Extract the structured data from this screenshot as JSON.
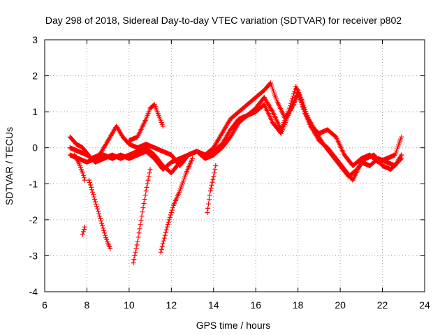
{
  "chart_data": {
    "type": "scatter",
    "title": "Day 298 of 2018, Sidereal Day-to-day VTEC variation (SDTVAR) for receiver p802",
    "xlabel": "GPS time / hours",
    "ylabel": "SDTVAR / TECUs",
    "xlim": [
      6,
      24
    ],
    "ylim": [
      -4,
      3
    ],
    "xticks": [
      "6",
      "8",
      "10",
      "12",
      "14",
      "16",
      "18",
      "20",
      "22",
      "24"
    ],
    "yticks": [
      "-4",
      "-3",
      "-2",
      "-1",
      "0",
      "1",
      "2",
      "3"
    ],
    "grid": true,
    "legend": "none",
    "marker": "+",
    "colors": {
      "series": "#ff0000",
      "axis": "#000000",
      "grid": "#a0a0a0"
    },
    "series": [
      {
        "name": "track-1",
        "x": [
          7.2,
          7.5,
          7.8,
          8.2,
          8.6,
          9.0,
          9.4,
          9.7,
          10.0,
          10.4,
          10.8,
          11.2,
          11.6,
          12.0,
          12.4,
          12.8,
          13.2,
          13.6,
          14.0,
          14.4,
          14.8,
          15.2,
          15.6,
          16.0,
          16.4,
          16.7,
          17.0,
          17.4,
          17.8,
          18.0,
          18.3,
          18.6,
          19.0,
          19.4,
          19.8,
          20.2,
          20.6,
          21.0,
          21.4,
          21.8,
          22.2,
          22.6,
          22.9
        ],
        "y": [
          0.3,
          0.1,
          0.0,
          -0.3,
          -0.2,
          0.2,
          0.6,
          0.3,
          0.1,
          0.0,
          0.1,
          0.0,
          -0.1,
          -0.2,
          -0.5,
          -0.2,
          -0.1,
          -0.2,
          0.0,
          0.4,
          0.8,
          1.0,
          1.2,
          1.4,
          1.6,
          1.8,
          1.3,
          0.8,
          1.2,
          1.6,
          1.0,
          0.6,
          0.4,
          0.5,
          0.3,
          -0.2,
          -0.5,
          -0.3,
          -0.2,
          -0.4,
          -0.3,
          -0.2,
          0.3
        ]
      },
      {
        "name": "track-2",
        "x": [
          7.2,
          7.6,
          8.0,
          8.4,
          8.8,
          9.2,
          9.6,
          10.0,
          10.4,
          10.8,
          11.2,
          11.6,
          12.0,
          12.4,
          12.8,
          13.2,
          13.6,
          14.0,
          14.4,
          14.8,
          15.2,
          15.6,
          16.0,
          16.4,
          16.8,
          17.2,
          17.6,
          17.9,
          18.2,
          18.6,
          19.0,
          19.4,
          19.8,
          20.2,
          20.6,
          21.0,
          21.4,
          21.8,
          22.2,
          22.6,
          22.9
        ],
        "y": [
          0.0,
          -0.1,
          -0.2,
          -0.4,
          -0.3,
          -0.2,
          -0.3,
          -0.2,
          -0.1,
          0.0,
          -0.2,
          -0.5,
          -0.7,
          -0.4,
          -0.2,
          -0.1,
          -0.3,
          -0.2,
          0.0,
          0.3,
          0.7,
          0.9,
          1.1,
          1.4,
          1.0,
          0.5,
          1.1,
          1.7,
          1.3,
          0.6,
          0.2,
          0.0,
          -0.3,
          -0.6,
          -0.9,
          -0.4,
          -0.5,
          -0.3,
          -0.4,
          -0.5,
          -0.2
        ]
      },
      {
        "name": "track-3",
        "x": [
          7.2,
          7.6,
          8.0,
          8.4,
          8.8,
          9.2,
          9.6,
          10.0,
          10.4,
          10.8,
          11.2,
          11.6,
          12.0,
          12.4,
          12.8,
          13.2,
          13.6,
          14.0,
          14.4,
          14.8,
          15.2,
          15.6,
          16.0,
          16.4,
          16.8,
          17.2,
          17.6,
          18.0,
          18.4,
          18.8,
          19.2,
          19.6,
          20.0,
          20.4,
          20.8,
          21.2,
          21.6,
          22.0,
          22.4,
          22.9
        ],
        "y": [
          -0.2,
          -0.3,
          -0.4,
          -0.3,
          -0.2,
          -0.3,
          -0.2,
          -0.3,
          -0.2,
          -0.1,
          -0.3,
          -0.6,
          -0.4,
          -0.3,
          -0.2,
          -0.1,
          -0.2,
          -0.1,
          0.1,
          0.5,
          0.8,
          0.9,
          1.0,
          1.2,
          0.7,
          0.4,
          1.0,
          1.5,
          0.9,
          0.5,
          0.1,
          -0.2,
          -0.5,
          -0.8,
          -0.6,
          -0.3,
          -0.2,
          -0.5,
          -0.6,
          -0.3
        ]
      },
      {
        "name": "bump-11h",
        "x": [
          10.0,
          10.4,
          10.8,
          11.0,
          11.2,
          11.4,
          11.6
        ],
        "y": [
          0.2,
          0.3,
          0.8,
          1.1,
          1.2,
          0.9,
          0.6
        ]
      },
      {
        "name": "drop-7.5h",
        "x": [
          7.4,
          7.6,
          7.8,
          7.9
        ],
        "y": [
          -0.2,
          -0.4,
          -0.7,
          -0.9
        ]
      },
      {
        "name": "fragment-8h",
        "x": [
          7.8,
          7.9
        ],
        "y": [
          -2.4,
          -2.2
        ]
      },
      {
        "name": "dip-9h",
        "x": [
          8.1,
          8.3,
          8.5,
          8.7,
          8.9,
          9.1
        ],
        "y": [
          -0.9,
          -1.3,
          -1.7,
          -2.1,
          -2.5,
          -2.8
        ]
      },
      {
        "name": "dip-10h",
        "x": [
          10.2,
          10.4,
          10.6,
          10.8,
          11.0
        ],
        "y": [
          -3.2,
          -2.6,
          -1.9,
          -1.2,
          -0.6
        ]
      },
      {
        "name": "recover-12h",
        "x": [
          11.5,
          11.8,
          12.1,
          12.4,
          12.7,
          13.0
        ],
        "y": [
          -2.9,
          -2.2,
          -1.6,
          -1.2,
          -0.7,
          -0.3
        ]
      },
      {
        "name": "recover-14h",
        "x": [
          13.7,
          13.85,
          14.0,
          14.1
        ],
        "y": [
          -1.8,
          -1.2,
          -0.8,
          -0.5
        ]
      }
    ]
  }
}
